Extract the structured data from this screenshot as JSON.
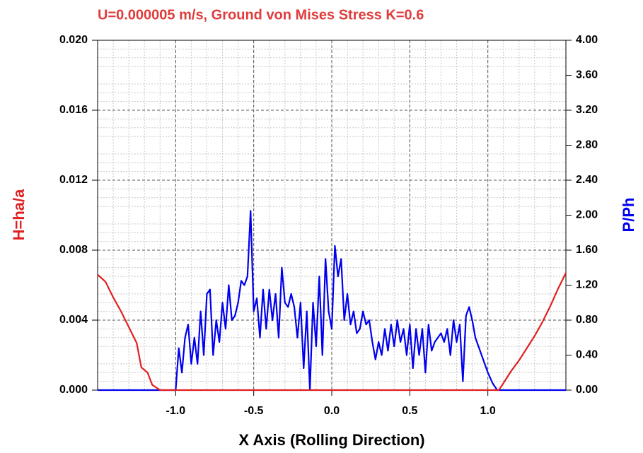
{
  "chart_data": {
    "type": "line",
    "title": "U=0.000005 m/s, Ground von Mises Stress K=0.6",
    "xlabel": "X Axis (Rolling Direction)",
    "ylabel": "H=ha/a",
    "y2label": "P/Ph",
    "xlim": [
      -1.5,
      1.5
    ],
    "ylim": [
      0,
      0.02
    ],
    "y2lim": [
      0,
      4
    ],
    "xticks": [
      {
        "value": -1,
        "label": "-1.0"
      },
      -0.5,
      {
        "value": 0,
        "label": "0.0"
      },
      0.5,
      {
        "value": 1,
        "label": "1.0"
      }
    ],
    "yticks": [
      {
        "value": 0,
        "label": "0.000"
      },
      {
        "value": 0.004,
        "label": "0.004"
      },
      {
        "value": 0.008,
        "label": "0.008"
      },
      {
        "value": 0.012,
        "label": "0.012"
      },
      {
        "value": 0.016,
        "label": "0.016"
      },
      {
        "value": 0.02,
        "label": "0.020"
      }
    ],
    "y2ticks": [
      {
        "value": 0,
        "label": "0.00"
      },
      {
        "value": 0.4,
        "label": "0.40"
      },
      {
        "value": 0.8,
        "label": "0.80"
      },
      {
        "value": 1.2,
        "label": "1.20"
      },
      {
        "value": 1.6,
        "label": "1.60"
      },
      {
        "value": 2,
        "label": "2.00"
      },
      {
        "value": 2.4,
        "label": "2.40"
      },
      {
        "value": 2.8,
        "label": "2.80"
      },
      {
        "value": 3.2,
        "label": "3.20"
      },
      {
        "value": 3.6,
        "label": "3.60"
      },
      {
        "value": 4,
        "label": "4.00"
      }
    ],
    "grid": true,
    "series": [
      {
        "color": "#0000ee",
        "axis": "y2",
        "x": [
          -1.5,
          -1.0,
          -0.98,
          -0.96,
          -0.94,
          -0.92,
          -0.9,
          -0.88,
          -0.86,
          -0.84,
          -0.82,
          -0.8,
          -0.78,
          -0.76,
          -0.74,
          -0.72,
          -0.7,
          -0.68,
          -0.66,
          -0.64,
          -0.62,
          -0.6,
          -0.58,
          -0.56,
          -0.54,
          -0.52,
          -0.5,
          -0.48,
          -0.46,
          -0.44,
          -0.42,
          -0.4,
          -0.38,
          -0.36,
          -0.34,
          -0.32,
          -0.3,
          -0.28,
          -0.26,
          -0.24,
          -0.22,
          -0.2,
          -0.18,
          -0.16,
          -0.14,
          -0.12,
          -0.1,
          -0.08,
          -0.06,
          -0.04,
          -0.02,
          0,
          0.02,
          0.04,
          0.06,
          0.08,
          0.1,
          0.12,
          0.14,
          0.16,
          0.18,
          0.2,
          0.22,
          0.24,
          0.26,
          0.28,
          0.3,
          0.32,
          0.34,
          0.36,
          0.38,
          0.4,
          0.42,
          0.44,
          0.46,
          0.48,
          0.5,
          0.52,
          0.54,
          0.56,
          0.58,
          0.6,
          0.62,
          0.64,
          0.66,
          0.68,
          0.7,
          0.72,
          0.74,
          0.76,
          0.78,
          0.8,
          0.82,
          0.84,
          0.86,
          0.88,
          0.9,
          0.92,
          0.94,
          0.96,
          0.98,
          1.0,
          1.03,
          1.06,
          1.5
        ],
        "values": [
          0,
          0,
          0.48,
          0.2,
          0.6,
          0.75,
          0.3,
          0.6,
          0.3,
          0.9,
          0.4,
          1.1,
          1.15,
          0.4,
          0.8,
          0.55,
          1.0,
          0.7,
          1.2,
          0.8,
          0.85,
          1.0,
          1.25,
          1.2,
          1.3,
          2.05,
          0.9,
          1.05,
          0.6,
          1.15,
          0.7,
          1.15,
          0.8,
          1.1,
          0.6,
          1.4,
          1.0,
          0.95,
          1.1,
          0.95,
          0.6,
          1.0,
          0.25,
          0.9,
          0.0,
          1.0,
          0.5,
          1.3,
          0.4,
          1.5,
          0.9,
          0.7,
          1.65,
          1.3,
          1.5,
          0.8,
          1.1,
          0.75,
          0.9,
          0.65,
          0.7,
          0.9,
          0.75,
          0.8,
          0.55,
          0.35,
          0.55,
          0.4,
          0.7,
          0.45,
          0.75,
          0.5,
          0.8,
          0.55,
          0.7,
          0.4,
          0.75,
          0.25,
          0.7,
          0.4,
          0.7,
          0.2,
          0.75,
          0.45,
          0.55,
          0.6,
          0.65,
          0.55,
          0.7,
          0.4,
          0.8,
          0.55,
          0.75,
          0.1,
          0.85,
          0.95,
          0.8,
          0.6,
          0.5,
          0.4,
          0.3,
          0.2,
          0.08,
          0,
          0
        ]
      },
      {
        "color": "#e02020",
        "axis": "y",
        "x": [
          -1.5,
          -1.45,
          -1.4,
          -1.35,
          -1.3,
          -1.25,
          -1.22,
          -1.18,
          -1.15,
          -1.1,
          1.07,
          1.1,
          1.15,
          1.2,
          1.25,
          1.3,
          1.35,
          1.4,
          1.45,
          1.5
        ],
        "values": [
          0.0066,
          0.0062,
          0.0053,
          0.0045,
          0.0036,
          0.0027,
          0.0013,
          0.001,
          0.0003,
          0,
          0,
          0.0004,
          0.0011,
          0.0017,
          0.0024,
          0.0031,
          0.0039,
          0.0048,
          0.0058,
          0.0067
        ]
      }
    ]
  }
}
